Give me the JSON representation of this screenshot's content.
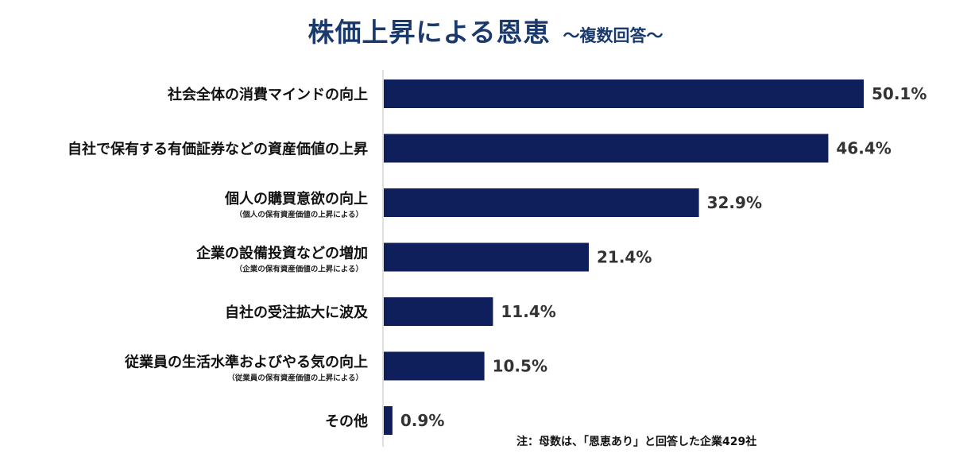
{
  "header": {
    "title": "株価上昇による恩恵",
    "subtitle": "～複数回答～"
  },
  "footnote": "注：母数は、「恩恵あり」と回答した企業429社",
  "colors": {
    "bar": "#0f1f5c",
    "title": "#1a3a6e",
    "axis": "#bfbfbf"
  },
  "chart_data": {
    "type": "bar",
    "orientation": "horizontal",
    "title": "株価上昇による恩恵",
    "subtitle": "～複数回答～",
    "unit": "%",
    "xlim": [
      0,
      50.1
    ],
    "grid": false,
    "legend": "none",
    "categories": [
      "社会全体の消費マインドの向上",
      "自社で保有する有価証券などの資産価値の上昇",
      "個人の購買意欲の向上",
      "企業の設備投資などの増加",
      "自社の受注拡大に波及",
      "従業員の生活水準およびやる気の向上",
      "その他"
    ],
    "sublabels": [
      "",
      "",
      "（個人の保有資産価値の上昇による）",
      "（企業の保有資産価値の上昇による）",
      "",
      "（従業員の保有資産価値の上昇による）",
      ""
    ],
    "values": [
      50.1,
      46.4,
      32.9,
      21.4,
      11.4,
      10.5,
      0.9
    ],
    "value_labels": [
      "50.1%",
      "46.4%",
      "32.9%",
      "21.4%",
      "11.4%",
      "10.5%",
      "0.9%"
    ]
  }
}
